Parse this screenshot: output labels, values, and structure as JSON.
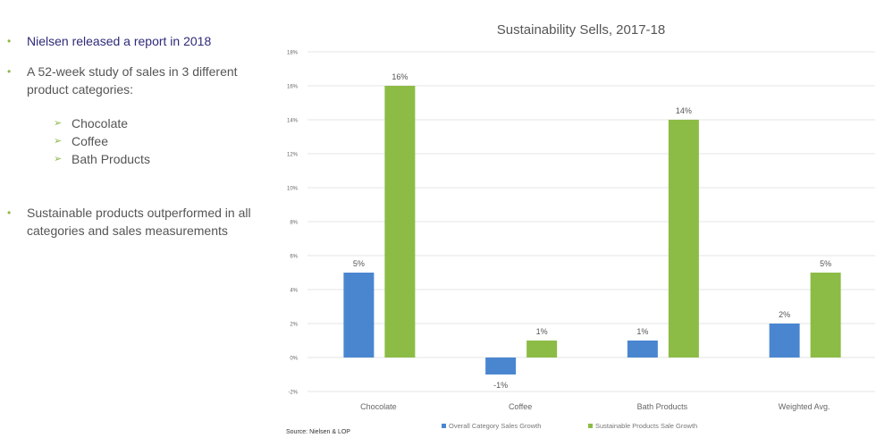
{
  "bullets": {
    "b1": "Nielsen released a report in 2018",
    "b2": "A 52-week study of sales in 3 different product categories:",
    "subs": [
      "Chocolate",
      "Coffee",
      "Bath Products"
    ],
    "b3": "Sustainable products outperformed in all categories and sales measurements"
  },
  "source": "Source: Nielsen & LOP",
  "chart_data": {
    "type": "bar",
    "title": "Sustainability Sells, 2017-18",
    "categories": [
      "Chocolate",
      "Coffee",
      "Bath Products",
      "Weighted Avg."
    ],
    "series": [
      {
        "name": "Overall Category Sales Growth",
        "values": [
          5,
          -1,
          1,
          2
        ],
        "color": "#4a86d0"
      },
      {
        "name": "Sustainable Products Sale Growth",
        "values": [
          16,
          1,
          14,
          5
        ],
        "color": "#8cbc45"
      }
    ],
    "ylim": [
      -2,
      18
    ],
    "yticks": [
      "-2%",
      "0%",
      "2%",
      "4%",
      "6%",
      "8%",
      "10%",
      "12%",
      "14%",
      "16%",
      "18%"
    ],
    "data_labels": [
      [
        "5%",
        "-1%",
        "1%",
        "2%"
      ],
      [
        "16%",
        "1%",
        "14%",
        "5%"
      ]
    ],
    "grid": true,
    "legend": "bottom"
  }
}
